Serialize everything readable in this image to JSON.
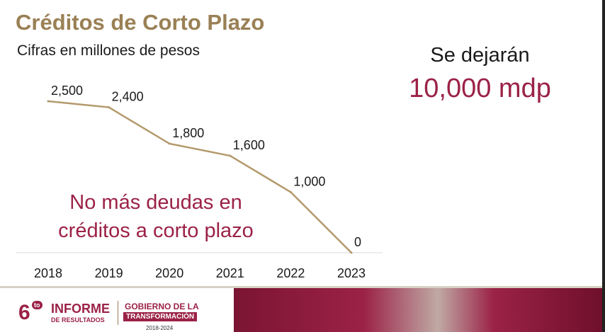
{
  "slide": {
    "title": "Créditos de Corto Plazo",
    "subtitle": "Cifras en millones de pesos",
    "side_label": "Se dejarán",
    "side_value": "10,000 mdp",
    "message_lines": [
      "No más deudas en",
      "créditos a corto plazo"
    ]
  },
  "footer": {
    "six": "6",
    "six_suffix": "to",
    "informe": "INFORME",
    "resultados": "DE RESULTADOS",
    "gobierno": "GOBIERNO DE LA",
    "transformacion": "TRANSFORMACIÓN",
    "years": "2018-2024"
  },
  "colors": {
    "title": "#9a8055",
    "accent": "#9b2247",
    "line": "#b39a6b",
    "axis": "#d9d9d9"
  },
  "chart_data": {
    "type": "line",
    "categories": [
      "2018",
      "2019",
      "2020",
      "2021",
      "2022",
      "2023"
    ],
    "series": [
      {
        "values": [
          2500,
          2400,
          1800,
          1600,
          1000,
          0
        ],
        "labels": [
          "2,500",
          "2,400",
          "1,800",
          "1,600",
          "1,000",
          "0"
        ]
      }
    ],
    "ylim": [
      0,
      2500
    ],
    "grid": false,
    "legend": "none"
  }
}
